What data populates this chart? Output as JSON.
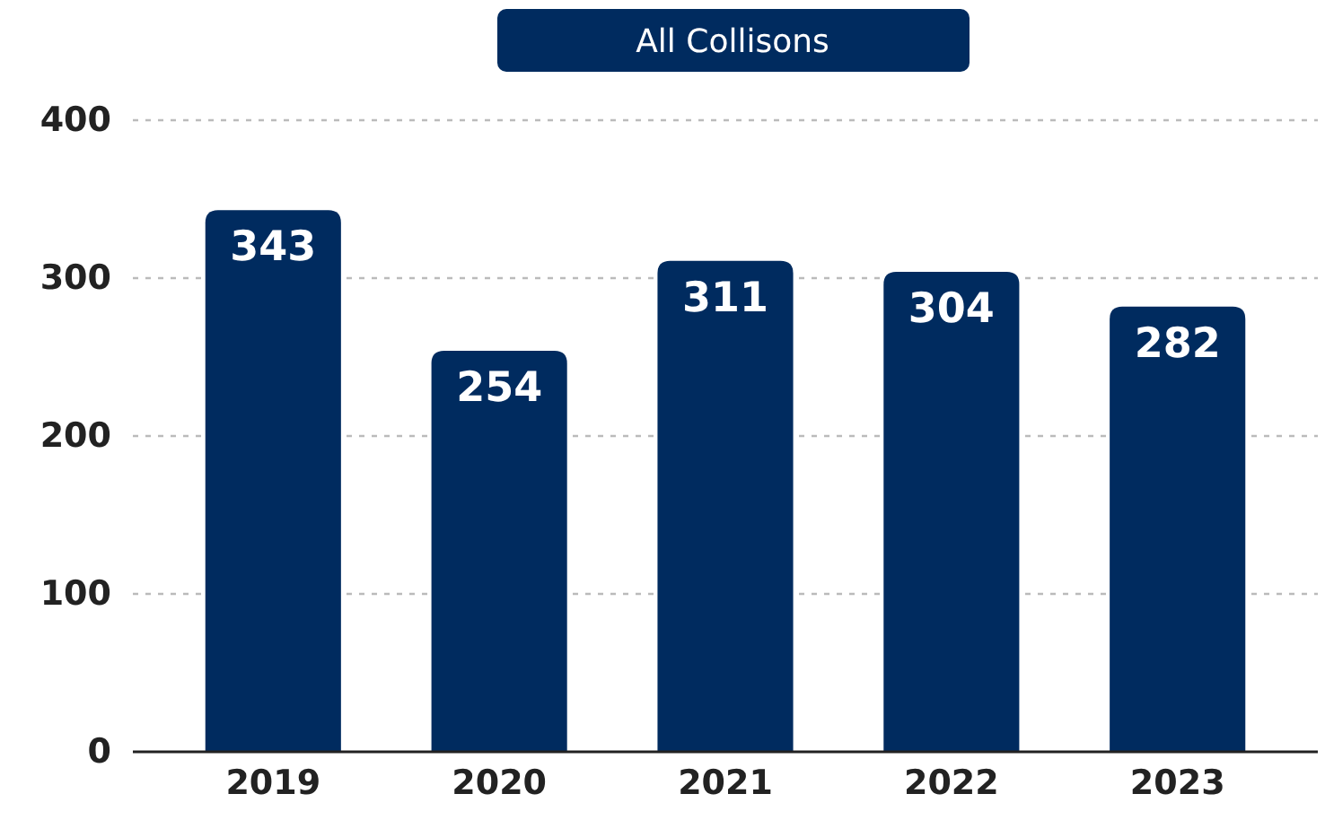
{
  "chart_data": {
    "type": "bar",
    "title": "All Collisons",
    "categories": [
      "2019",
      "2020",
      "2021",
      "2022",
      "2023"
    ],
    "values": [
      343,
      254,
      311,
      304,
      282
    ],
    "color": "#002b5f",
    "ylim": [
      0,
      400
    ],
    "yticks": [
      0,
      100,
      200,
      300,
      400
    ],
    "grid": "y",
    "data_labels": true
  }
}
